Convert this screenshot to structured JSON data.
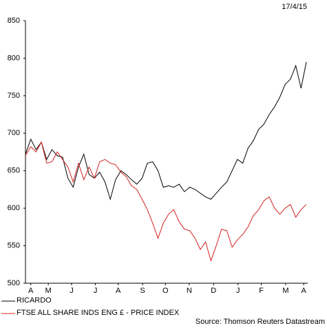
{
  "chart_data": {
    "type": "line",
    "date": "17/4/15",
    "source": "Source: Thomson Reuters Datastream",
    "xlim": [
      0,
      53
    ],
    "xticks": [
      {
        "value": 1,
        "label": "A"
      },
      {
        "value": 4.3,
        "label": "M"
      },
      {
        "value": 8.7,
        "label": "J"
      },
      {
        "value": 13.2,
        "label": "J"
      },
      {
        "value": 17.5,
        "label": "A"
      },
      {
        "value": 22.1,
        "label": "S"
      },
      {
        "value": 26.4,
        "label": "O"
      },
      {
        "value": 30.9,
        "label": "N"
      },
      {
        "value": 35.5,
        "label": "D"
      },
      {
        "value": 40.1,
        "label": "J"
      },
      {
        "value": 44.5,
        "label": "F"
      },
      {
        "value": 49.1,
        "label": "M"
      },
      {
        "value": 52.5,
        "label": "A"
      }
    ],
    "ylim": [
      500,
      850
    ],
    "yticks": [
      500,
      550,
      600,
      650,
      700,
      750,
      800,
      850
    ],
    "series": [
      {
        "name": "RICARDO",
        "color": "#000000",
        "values": [
          672,
          692,
          678,
          688,
          665,
          678,
          670,
          668,
          640,
          628,
          655,
          672,
          645,
          640,
          648,
          635,
          612,
          638,
          650,
          645,
          638,
          632,
          640,
          660,
          662,
          650,
          628,
          630,
          628,
          632,
          622,
          628,
          625,
          620,
          615,
          612,
          620,
          628,
          635,
          650,
          665,
          660,
          680,
          690,
          705,
          712,
          725,
          735,
          748,
          765,
          772,
          790,
          760,
          795
        ]
      },
      {
        "name": "FTSE ALL SHARE INDS ENG £ - PRICE INDEX",
        "color": "#d42020",
        "values": [
          670,
          682,
          675,
          688,
          660,
          662,
          675,
          665,
          655,
          635,
          660,
          638,
          655,
          640,
          662,
          665,
          660,
          658,
          648,
          642,
          630,
          625,
          612,
          598,
          580,
          560,
          580,
          592,
          598,
          582,
          572,
          570,
          560,
          545,
          555,
          530,
          550,
          572,
          570,
          548,
          558,
          565,
          575,
          590,
          598,
          610,
          615,
          600,
          592,
          600,
          605,
          588,
          598,
          605
        ]
      }
    ]
  }
}
